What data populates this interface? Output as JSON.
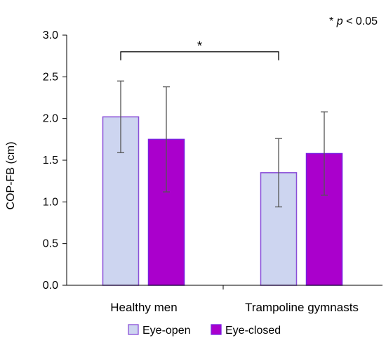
{
  "chart_data": {
    "type": "bar",
    "categories": [
      "Healthy men",
      "Trampoline gymnasts"
    ],
    "series": [
      {
        "name": "Eye-open",
        "values": [
          2.02,
          1.35
        ],
        "errors": [
          0.43,
          0.41
        ],
        "color": "#cdd5f0",
        "edge": "#8a4fd8"
      },
      {
        "name": "Eye-closed",
        "values": [
          1.75,
          1.58
        ],
        "errors": [
          0.63,
          0.5
        ],
        "color": "#aa00cc",
        "edge": "#7a1fe0"
      }
    ],
    "ylabel": "COP-FB (cm)",
    "xlabel": "",
    "ylim": [
      0,
      3.0
    ],
    "yticks": [
      "0.0",
      "0.5",
      "1.0",
      "1.5",
      "2.0",
      "2.5",
      "3.0"
    ],
    "grid": false,
    "legend": "bottom",
    "significance": {
      "between": [
        "Healthy men",
        "Trampoline gymnasts"
      ],
      "series": "Eye-open",
      "y": 2.8,
      "marker": "*"
    },
    "note": {
      "star": "*",
      "p": "p",
      "text": "< 0.05"
    }
  }
}
